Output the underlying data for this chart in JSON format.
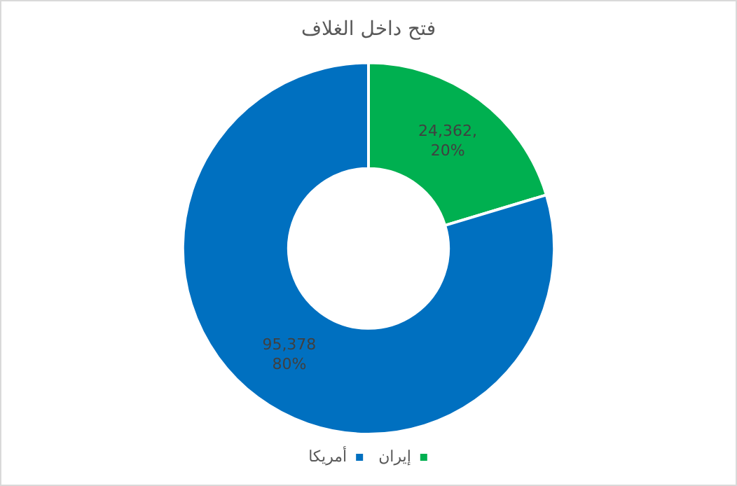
{
  "chart_data": {
    "type": "donut",
    "title": "فتح داخل الغلاف",
    "categories": [
      "إيران",
      "أمريكا"
    ],
    "values": [
      24362,
      95378
    ],
    "colors": [
      "#00b050",
      "#0070c0"
    ],
    "value_labels": [
      "24,362,\n20%",
      "95,378\n80%"
    ],
    "legend": "bottom"
  }
}
